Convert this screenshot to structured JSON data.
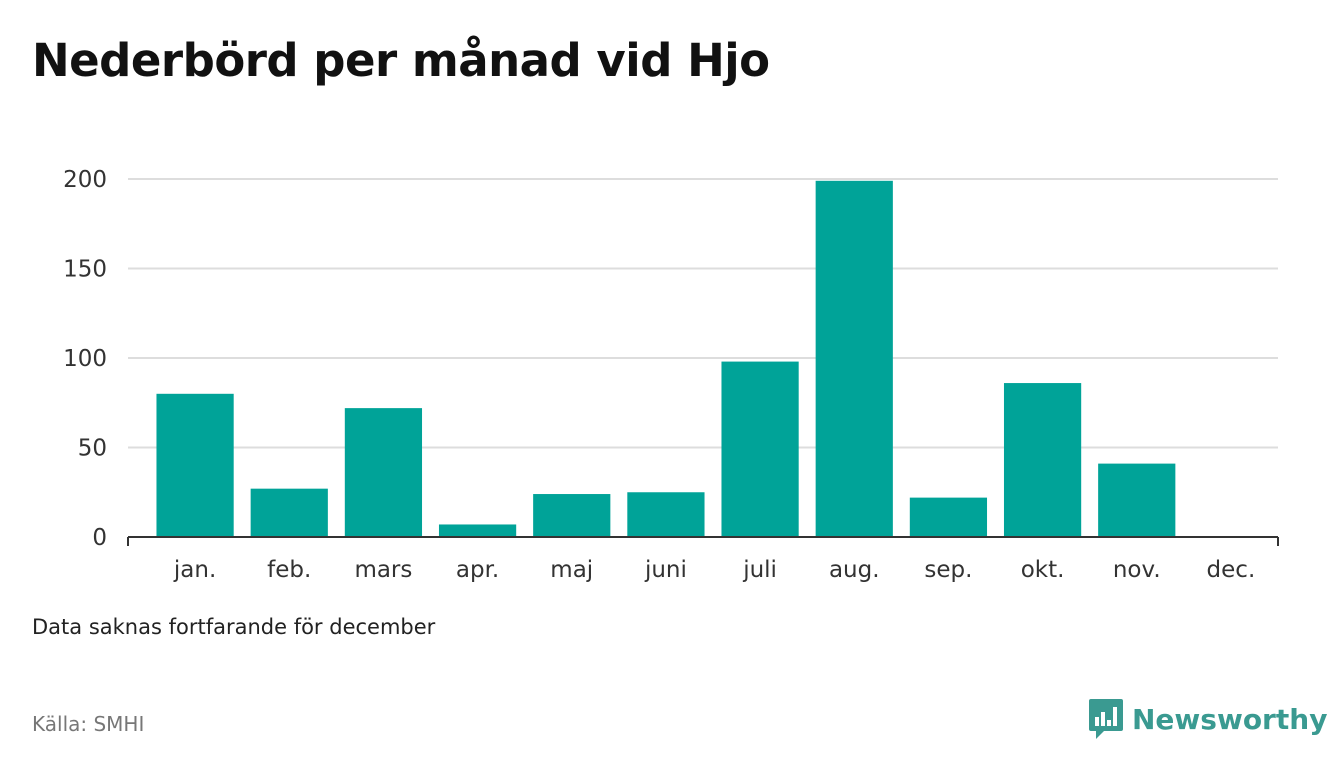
{
  "title": "Nederbörd per månad vid Hjo",
  "note": "Data saknas fortfarande för december",
  "source": "Källa: SMHI",
  "brand": {
    "name": "Newsworthy",
    "color": "#3a9a91",
    "icon": "bar-chart-speech-bubble-icon"
  },
  "colors": {
    "bar": "#00a398",
    "grid": "#dddddd",
    "axis": "#333333"
  },
  "chart_data": {
    "type": "bar",
    "categories": [
      "jan.",
      "feb.",
      "mars",
      "apr.",
      "maj",
      "juni",
      "juli",
      "aug.",
      "sep.",
      "okt.",
      "nov.",
      "dec."
    ],
    "values": [
      80,
      27,
      72,
      7,
      24,
      25,
      98,
      199,
      22,
      86,
      41,
      null
    ],
    "ylim": [
      0,
      200
    ],
    "yticks": [
      0,
      50,
      100,
      150,
      200
    ],
    "grid": true,
    "legend": "none"
  }
}
